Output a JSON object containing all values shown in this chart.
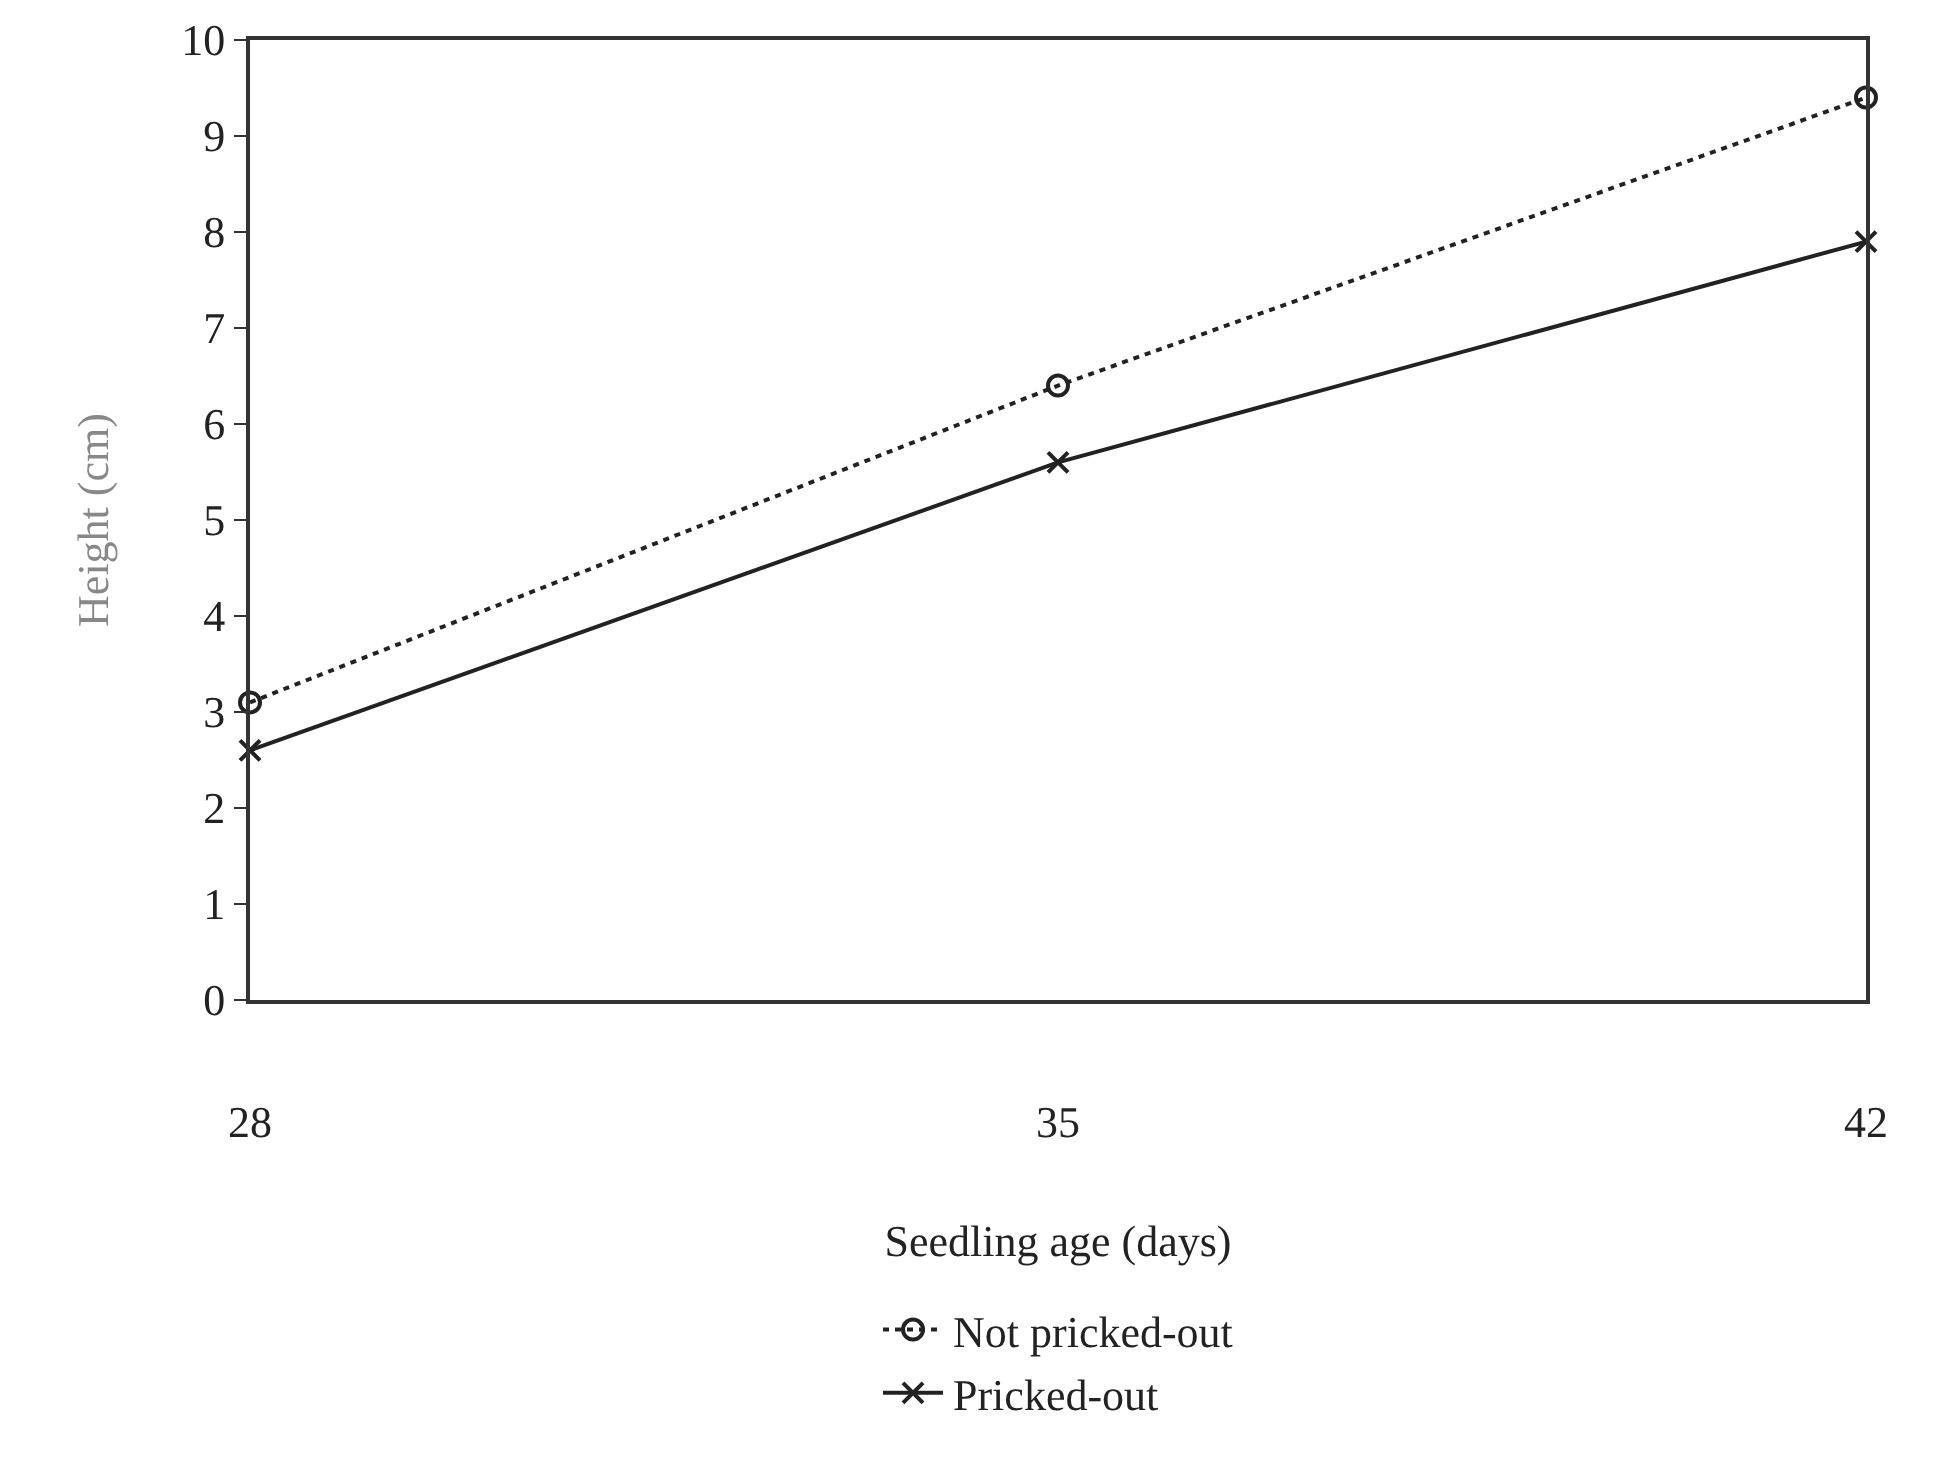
{
  "chart_data": {
    "type": "line",
    "xlabel": "Seedling age (days)",
    "ylabel": "Height (cm)",
    "x": [
      28,
      35,
      42
    ],
    "series": [
      {
        "name": "Not pricked-out",
        "color": "#222222",
        "values": [
          3.1,
          6.4,
          9.4
        ],
        "marker": "circle",
        "line_style": "dotted"
      },
      {
        "name": "Pricked-out",
        "color": "#222222",
        "values": [
          2.6,
          5.6,
          7.9
        ],
        "marker": "cross",
        "line_style": "solid"
      }
    ],
    "xlim": [
      28,
      42
    ],
    "xticks": [
      28,
      35,
      42
    ],
    "ylim": [
      0,
      10
    ],
    "yticks": [
      0,
      1,
      2,
      3,
      4,
      5,
      6,
      7,
      8,
      9,
      10
    ],
    "grid": false,
    "legend": "bottom"
  }
}
